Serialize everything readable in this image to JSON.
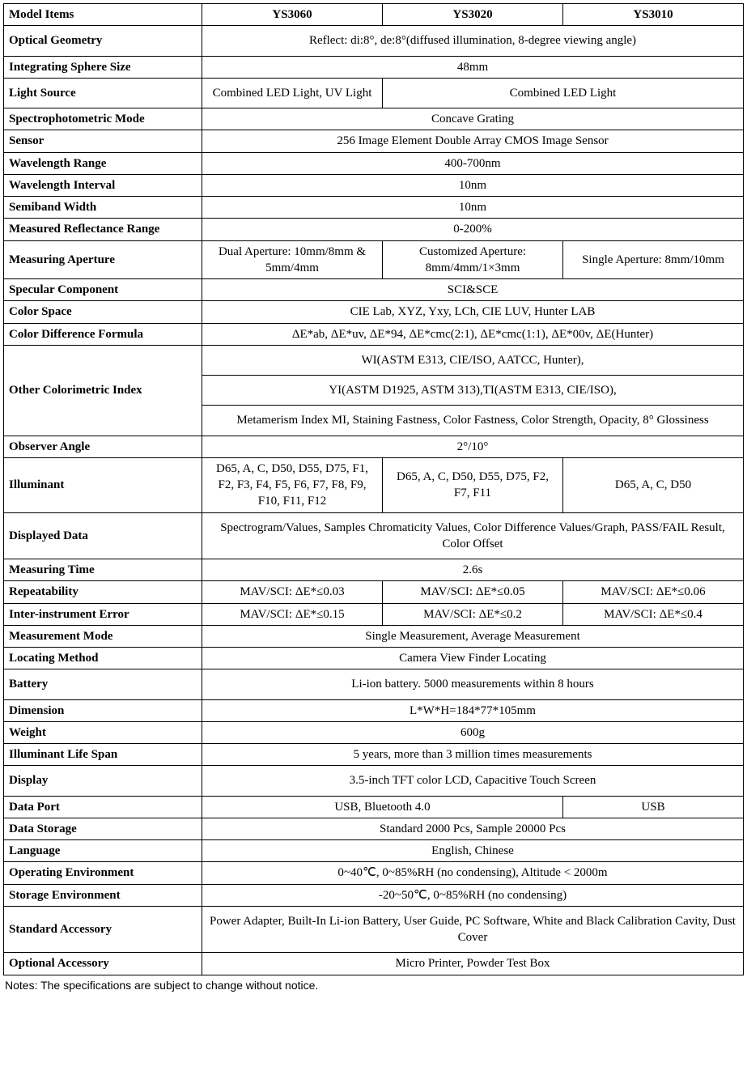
{
  "header": {
    "c0": "Model Items",
    "c1": "YS3060",
    "c2": "YS3020",
    "c3": "YS3010"
  },
  "rows": {
    "optical_geometry": {
      "label": "Optical Geometry",
      "val": "Reflect: di:8°, de:8°(diffused illumination, 8-degree viewing angle)"
    },
    "sphere_size": {
      "label": "Integrating Sphere Size",
      "val": "48mm"
    },
    "light_source": {
      "label": "Light Source",
      "v1": "Combined LED Light, UV Light",
      "v23": "Combined LED Light"
    },
    "spectro_mode": {
      "label": "Spectrophotometric Mode",
      "val": "Concave Grating"
    },
    "sensor": {
      "label": "Sensor",
      "val": "256 Image Element Double Array CMOS Image Sensor"
    },
    "wl_range": {
      "label": "Wavelength Range",
      "val": "400-700nm"
    },
    "wl_interval": {
      "label": "Wavelength Interval",
      "val": "10nm"
    },
    "semiband": {
      "label": "Semiband Width",
      "val": "10nm"
    },
    "refl_range": {
      "label": "Measured Reflectance Range",
      "val": "0-200%"
    },
    "aperture": {
      "label": "Measuring Aperture",
      "v1": "Dual Aperture: 10mm/8mm & 5mm/4mm",
      "v2": "Customized Aperture: 8mm/4mm/1×3mm",
      "v3": "Single Aperture: 8mm/10mm"
    },
    "specular": {
      "label": "Specular Component",
      "val": "SCI&SCE"
    },
    "color_space": {
      "label": "Color Space",
      "val": "CIE Lab, XYZ, Yxy, LCh, CIE LUV, Hunter LAB"
    },
    "color_diff": {
      "label": "Color Difference Formula",
      "val": "ΔE*ab, ΔE*uv, ΔE*94, ΔE*cmc(2:1), ΔE*cmc(1:1), ΔE*00v, ΔE(Hunter)"
    },
    "other_index": {
      "label": "Other Colorimetric Index",
      "r1": "WI(ASTM E313, CIE/ISO, AATCC, Hunter),",
      "r2": "YI(ASTM D1925, ASTM 313),TI(ASTM E313, CIE/ISO),",
      "r3": "Metamerism Index MI, Staining Fastness, Color Fastness, Color Strength, Opacity, 8° Glossiness"
    },
    "observer": {
      "label": "Observer Angle",
      "val": "2°/10°"
    },
    "illuminant": {
      "label": "Illuminant",
      "v1": "D65, A, C, D50, D55, D75, F1, F2, F3, F4, F5, F6, F7, F8, F9, F10, F11, F12",
      "v2": "D65, A, C, D50, D55, D75, F2, F7, F11",
      "v3": "D65, A, C, D50"
    },
    "displayed": {
      "label": "Displayed Data",
      "val": "Spectrogram/Values, Samples Chromaticity Values, Color Difference Values/Graph, PASS/FAIL Result, Color Offset"
    },
    "meas_time": {
      "label": "Measuring Time",
      "val": "2.6s"
    },
    "repeat": {
      "label": "Repeatability",
      "v1": "MAV/SCI: ΔE*≤0.03",
      "v2": "MAV/SCI: ΔE*≤0.05",
      "v3": "MAV/SCI: ΔE*≤0.06"
    },
    "inter_err": {
      "label": "Inter-instrument Error",
      "v1": "MAV/SCI: ΔE*≤0.15",
      "v2": "MAV/SCI: ΔE*≤0.2",
      "v3": "MAV/SCI: ΔE*≤0.4"
    },
    "meas_mode": {
      "label": "Measurement Mode",
      "val": "Single Measurement, Average Measurement"
    },
    "locating": {
      "label": "Locating Method",
      "val": "Camera View Finder Locating"
    },
    "battery": {
      "label": "Battery",
      "val": "Li-ion battery. 5000 measurements within 8 hours"
    },
    "dimension": {
      "label": "Dimension",
      "val": "L*W*H=184*77*105mm"
    },
    "weight": {
      "label": "Weight",
      "val": "600g"
    },
    "life_span": {
      "label": "Illuminant Life Span",
      "val": "5 years, more than 3 million times measurements"
    },
    "display": {
      "label": "Display",
      "val": "3.5-inch TFT color LCD, Capacitive Touch Screen"
    },
    "data_port": {
      "label": "Data Port",
      "v12": "USB, Bluetooth 4.0",
      "v3": "USB"
    },
    "storage": {
      "label": "Data Storage",
      "val": "Standard 2000 Pcs, Sample 20000 Pcs"
    },
    "language": {
      "label": "Language",
      "val": "English, Chinese"
    },
    "op_env": {
      "label": "Operating Environment",
      "val": "0~40℃, 0~85%RH (no condensing), Altitude < 2000m"
    },
    "st_env": {
      "label": "Storage Environment",
      "val": "-20~50℃, 0~85%RH (no condensing)"
    },
    "std_acc": {
      "label": "Standard Accessory",
      "val": "Power Adapter, Built-In Li-ion Battery, User Guide, PC Software, White and Black Calibration Cavity, Dust Cover"
    },
    "opt_acc": {
      "label": "Optional Accessory",
      "val": "Micro Printer, Powder Test Box"
    }
  },
  "footnote": "Notes: The specifications are subject to change without notice."
}
